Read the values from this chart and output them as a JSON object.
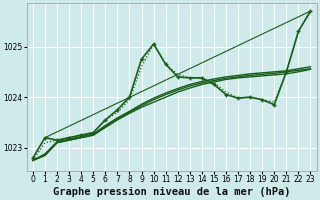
{
  "background_color": "#ceeaea",
  "grid_color": "#ffffff",
  "line_color": "#1a5c1a",
  "title": "Graphe pression niveau de la mer (hPa)",
  "xlim": [
    -0.5,
    23.5
  ],
  "ylim": [
    1022.55,
    1025.85
  ],
  "yticks": [
    1023,
    1024,
    1025
  ],
  "xticks": [
    0,
    1,
    2,
    3,
    4,
    5,
    6,
    7,
    8,
    9,
    10,
    11,
    12,
    13,
    14,
    15,
    16,
    17,
    18,
    19,
    20,
    21,
    22,
    23
  ],
  "series": [
    {
      "x": [
        1,
        23
      ],
      "y": [
        1023.2,
        1025.7
      ],
      "style": "solid",
      "marker": null,
      "linewidth": 0.8
    },
    {
      "x": [
        0,
        1,
        2,
        3,
        4,
        5,
        6,
        7,
        8,
        9,
        10,
        11,
        12,
        13,
        14,
        15,
        16,
        17,
        18,
        19,
        20,
        21,
        22,
        23
      ],
      "y": [
        1022.8,
        1023.2,
        1023.15,
        1023.2,
        1023.25,
        1023.3,
        1023.55,
        1023.75,
        1024.0,
        1024.75,
        1025.05,
        1024.65,
        1024.4,
        1024.38,
        1024.38,
        1024.25,
        1024.05,
        1023.98,
        1024.0,
        1023.95,
        1023.85,
        1024.5,
        1025.3,
        1025.7
      ],
      "style": "solid",
      "marker": "+",
      "linewidth": 1.2
    },
    {
      "x": [
        0,
        1,
        2,
        3,
        4,
        5,
        6,
        7,
        8,
        9,
        10,
        11,
        12,
        13,
        14,
        15,
        16,
        17,
        18,
        19,
        20,
        21,
        22,
        23
      ],
      "y": [
        1022.75,
        1023.1,
        1023.15,
        1023.2,
        1023.25,
        1023.3,
        1023.55,
        1023.7,
        1023.95,
        1024.6,
        1025.05,
        1024.65,
        1024.45,
        1024.38,
        1024.38,
        1024.28,
        1024.1,
        1023.98,
        1024.0,
        1023.95,
        1023.9,
        1024.5,
        1025.3,
        1025.7
      ],
      "style": "dotted",
      "marker": null,
      "linewidth": 0.9
    },
    {
      "x": [
        0,
        1,
        2,
        3,
        4,
        5,
        6,
        7,
        8,
        9,
        10,
        11,
        12,
        13,
        14,
        15,
        16,
        17,
        18,
        19,
        20,
        21,
        22,
        23
      ],
      "y": [
        1022.75,
        1022.85,
        1023.1,
        1023.15,
        1023.2,
        1023.25,
        1023.4,
        1023.55,
        1023.68,
        1023.8,
        1023.9,
        1024.0,
        1024.1,
        1024.18,
        1024.25,
        1024.3,
        1024.35,
        1024.38,
        1024.4,
        1024.42,
        1024.44,
        1024.46,
        1024.5,
        1024.55
      ],
      "style": "solid",
      "marker": null,
      "linewidth": 1.0
    },
    {
      "x": [
        0,
        1,
        2,
        3,
        4,
        5,
        6,
        7,
        8,
        9,
        10,
        11,
        12,
        13,
        14,
        15,
        16,
        17,
        18,
        19,
        20,
        21,
        22,
        23
      ],
      "y": [
        1022.75,
        1022.85,
        1023.1,
        1023.15,
        1023.2,
        1023.25,
        1023.42,
        1023.57,
        1023.7,
        1023.83,
        1023.95,
        1024.05,
        1024.14,
        1024.22,
        1024.28,
        1024.33,
        1024.37,
        1024.4,
        1024.43,
        1024.45,
        1024.47,
        1024.5,
        1024.53,
        1024.56
      ],
      "style": "solid",
      "marker": null,
      "linewidth": 1.0
    },
    {
      "x": [
        0,
        1,
        2,
        3,
        4,
        5,
        6,
        7,
        8,
        9,
        10,
        11,
        12,
        13,
        14,
        15,
        16,
        17,
        18,
        19,
        20,
        21,
        22,
        23
      ],
      "y": [
        1022.75,
        1022.88,
        1023.12,
        1023.17,
        1023.22,
        1023.27,
        1023.44,
        1023.59,
        1023.72,
        1023.86,
        1023.98,
        1024.08,
        1024.17,
        1024.25,
        1024.31,
        1024.36,
        1024.4,
        1024.43,
        1024.46,
        1024.48,
        1024.5,
        1024.52,
        1024.56,
        1024.6
      ],
      "style": "solid",
      "marker": null,
      "linewidth": 1.0
    }
  ],
  "title_fontsize": 7.5,
  "tick_fontsize": 5.5
}
